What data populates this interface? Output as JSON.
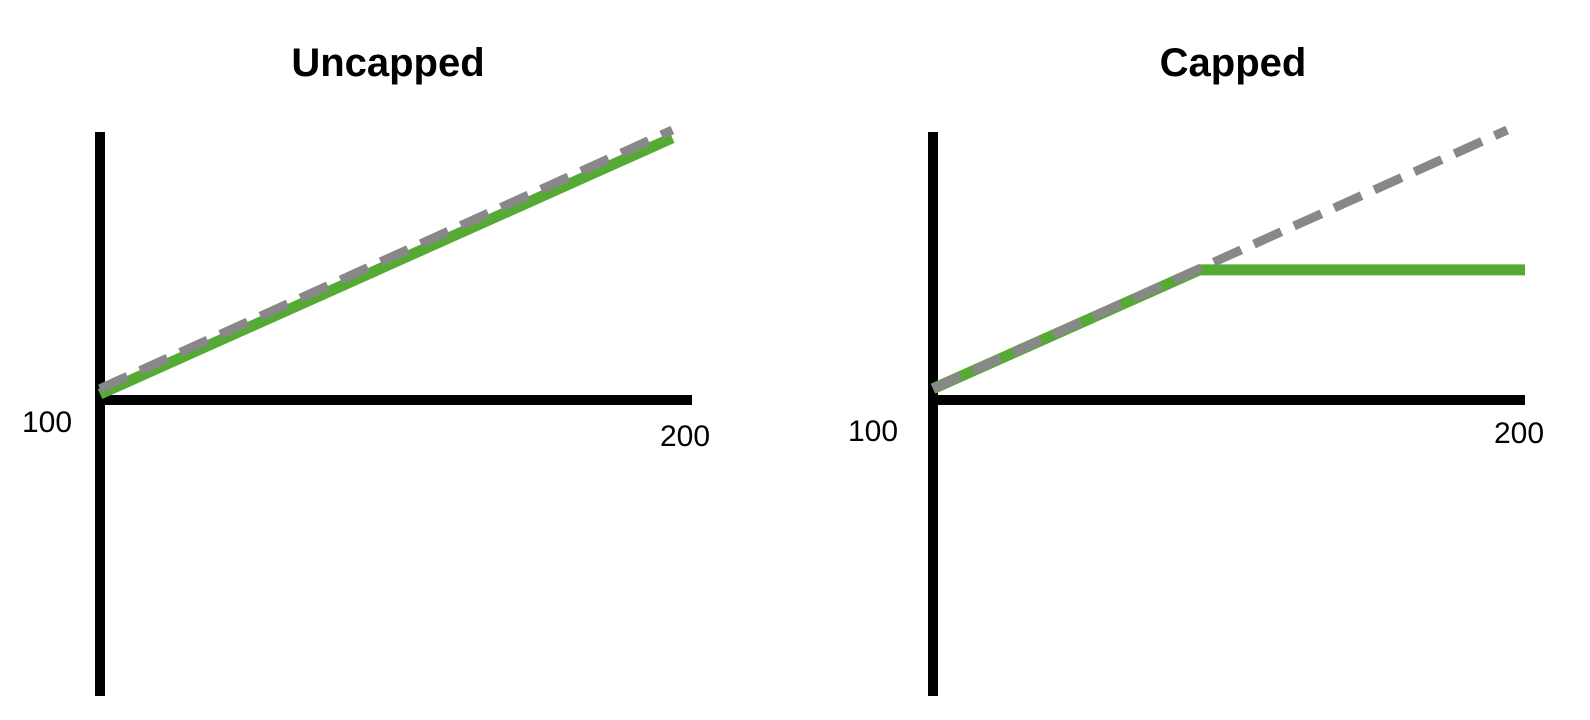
{
  "colors": {
    "axis": "#000000",
    "actual": "#55aa33",
    "reference": "#888888",
    "background": "#ffffff"
  },
  "chart_data": [
    {
      "type": "line",
      "title": "Uncapped",
      "xlabel": "",
      "ylabel": "",
      "tick_labels": {
        "origin": "100",
        "x_end": "200"
      },
      "xlim": [
        100,
        200
      ],
      "ylim": [
        0,
        100
      ],
      "series": [
        {
          "style": "dashed",
          "color": "#888888",
          "x": [
            100,
            197
          ],
          "y": [
            2,
            100
          ]
        },
        {
          "style": "solid",
          "color": "#55aa33",
          "x": [
            100,
            197
          ],
          "y": [
            0,
            97
          ]
        }
      ]
    },
    {
      "type": "line",
      "title": "Capped",
      "xlabel": "",
      "ylabel": "",
      "tick_labels": {
        "origin": "100",
        "x_end": "200"
      },
      "xlim": [
        100,
        200
      ],
      "ylim": [
        0,
        100
      ],
      "series": [
        {
          "style": "dashed",
          "color": "#888888",
          "x": [
            100,
            197
          ],
          "y": [
            2,
            100
          ]
        },
        {
          "style": "solid",
          "color": "#55aa33",
          "x": [
            100,
            145,
            200
          ],
          "y": [
            2,
            47,
            47
          ]
        }
      ]
    }
  ]
}
